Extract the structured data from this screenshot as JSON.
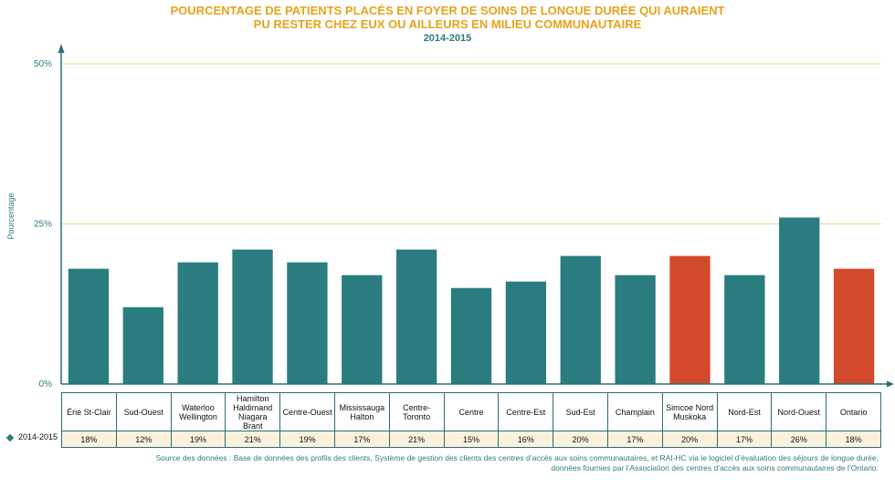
{
  "title_line1": "POURCENTAGE DE PATIENTS PLACÉS EN FOYER DE SOINS DE LONGUE DURÉE QUI AURAIENT",
  "title_line2": "PU RESTER CHEZ EUX OU AILLEURS EN MILIEU COMMUNAUTAIRE",
  "period": "2014-2015",
  "series_label": "2014-2015",
  "source_line1": "Source des données : Base de données des profils des clients,  Système de gestion des clients des centres d’accès aux soins communautaires, et RAI-HC via le logiciel d’évaluation des séjours de longue durée,",
  "source_line2": "données fournies par l’Association des centres d’accès aux soins communautaires de l’Ontario.",
  "colors": {
    "normal": "#2b7c7e",
    "highlight": "#d2492b",
    "grid": "#f2d690",
    "axis": "#2a6f73"
  },
  "chart_data": {
    "type": "bar",
    "ylabel": "Pourcentage",
    "ylim": [
      0,
      50
    ],
    "yticks": [
      "0%",
      "25%",
      "50%"
    ],
    "ytick_values": [
      0,
      25,
      50
    ],
    "grid": true,
    "categories": [
      "Érié St-Clair",
      "Sud-Ouest",
      "Waterloo Wellington",
      "Hamilton Haldimand Niagara Brant",
      "Centre-Ouest",
      "Mississauga Halton",
      "Centre-Toronto",
      "Centre",
      "Centre-Est",
      "Sud-Est",
      "Champlain",
      "Simcoe Nord Muskoka",
      "Nord-Est",
      "Nord-Ouest",
      "Ontario"
    ],
    "values": [
      18,
      12,
      19,
      21,
      19,
      17,
      21,
      15,
      16,
      20,
      17,
      20,
      17,
      26,
      18
    ],
    "value_labels": [
      "18%",
      "12%",
      "19%",
      "21%",
      "19%",
      "17%",
      "21%",
      "15%",
      "16%",
      "20%",
      "17%",
      "20%",
      "17%",
      "26%",
      "18%"
    ],
    "highlighted": [
      "Simcoe Nord Muskoka",
      "Ontario"
    ]
  }
}
